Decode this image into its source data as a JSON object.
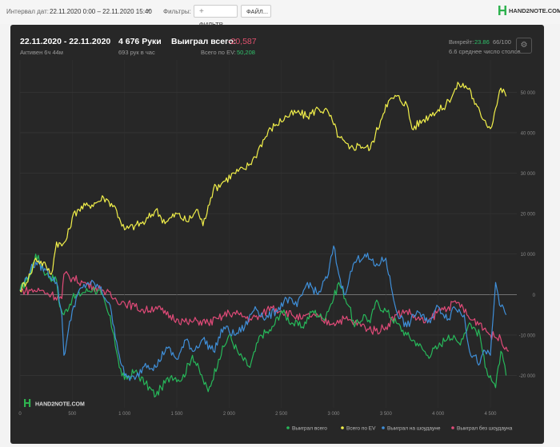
{
  "toolbar": {
    "interval_label": "Интервал дат:",
    "interval_value": "22.11.2020 0:00 – 22.11.2020 15:40",
    "filters_label": "Фильтры:",
    "filter_button": "ФИЛЬТР...",
    "file_button": "ФАЙЛ...",
    "logo": "HAND2NOTE.COM"
  },
  "summary": {
    "date_range": "22.11.2020 - 22.11.2020",
    "active": "Активен 6ч 44м",
    "hands": "4 676 Руки",
    "hands_per_hour": "693 рук в час",
    "won_total_label": "Выиграл всего:",
    "won_total_value": "-20,587",
    "ev_label": "Всего по EV:",
    "ev_value": "50,208",
    "winrate_label": "Винрейт:",
    "winrate_value": "23.86",
    "winrate_unit": "66/100",
    "avg_tables": "6.6 среднее число столов"
  },
  "colors": {
    "green": "#27b85a",
    "yellow": "#f2f04a",
    "blue": "#3f8fd9",
    "pink": "#e04a78",
    "negative": "#e0506e",
    "positive": "#2fc06a"
  },
  "chart_data": {
    "type": "line",
    "xlim": [
      0,
      4676
    ],
    "ylim": [
      -27000,
      55000
    ],
    "x_ticks": [
      "0",
      "500",
      "1 000",
      "1 500",
      "2 000",
      "2 500",
      "3 000",
      "3 500",
      "4 000",
      "4 500"
    ],
    "y_ticks": [
      "50 000",
      "40 000",
      "30 000",
      "20 000",
      "10 000",
      "0",
      "-10 000",
      "-20 000"
    ],
    "grid": true,
    "legend_position": "bottom-right",
    "watermark": "HAND2NOTE.COM",
    "series": [
      {
        "name": "Выиграл всего",
        "color": "#27b85a",
        "x": [
          0,
          100,
          150,
          250,
          350,
          380,
          420,
          500,
          600,
          700,
          780,
          850,
          900,
          950,
          1000,
          1100,
          1200,
          1300,
          1350,
          1450,
          1550,
          1650,
          1750,
          1800,
          1900,
          2000,
          2100,
          2200,
          2300,
          2400,
          2500,
          2600,
          2700,
          2800,
          2900,
          3000,
          3050,
          3150,
          3200,
          3300,
          3350,
          3400,
          3500,
          3600,
          3700,
          3800,
          3900,
          4000,
          4100,
          4200,
          4300,
          4400,
          4450,
          4500,
          4550,
          4600,
          4650
        ],
        "y": [
          1000,
          5000,
          10000,
          5000,
          3500,
          -3000,
          -5000,
          -1000,
          500,
          1500,
          0,
          -5000,
          -10000,
          -18000,
          -21000,
          -19000,
          -22000,
          -25000,
          -23000,
          -20000,
          -21000,
          -15000,
          -21000,
          -24000,
          -16000,
          -10000,
          -15000,
          -18000,
          -10000,
          -9000,
          -4000,
          -7000,
          -8000,
          -4000,
          -6000,
          -1000,
          3000,
          -3000,
          -8000,
          -5000,
          -7000,
          -2000,
          -4000,
          -7000,
          -10000,
          -12000,
          -15000,
          -13000,
          -10000,
          -12000,
          -7000,
          -10000,
          -18000,
          -20000,
          -23000,
          -14000,
          -20000
        ]
      },
      {
        "name": "Всего по EV",
        "color": "#f2f04a",
        "x": [
          0,
          100,
          150,
          250,
          300,
          350,
          400,
          450,
          500,
          550,
          650,
          750,
          800,
          850,
          900,
          950,
          1000,
          1100,
          1200,
          1300,
          1350,
          1400,
          1500,
          1600,
          1700,
          1750,
          1800,
          1850,
          1950,
          2050,
          2150,
          2250,
          2300,
          2400,
          2450,
          2550,
          2650,
          2750,
          2850,
          2950,
          3000,
          3050,
          3150,
          3250,
          3350,
          3450,
          3500,
          3600,
          3700,
          3750,
          3850,
          3950,
          4050,
          4100,
          4200,
          4300,
          4350,
          4450,
          4500,
          4550,
          4600,
          4650
        ],
        "y": [
          1000,
          5000,
          9000,
          7000,
          5000,
          13000,
          12000,
          14000,
          19000,
          21000,
          22000,
          23000,
          24000,
          23000,
          22000,
          19000,
          16000,
          17000,
          18000,
          21000,
          19000,
          18000,
          20000,
          18000,
          21000,
          17000,
          22000,
          26000,
          28000,
          30000,
          31000,
          34000,
          37000,
          41000,
          42000,
          44000,
          45000,
          44000,
          46000,
          45000,
          42000,
          39000,
          36000,
          37000,
          36000,
          43000,
          47000,
          49000,
          47000,
          41000,
          43000,
          45000,
          46000,
          48000,
          52000,
          51000,
          47000,
          43000,
          41000,
          46000,
          51000,
          49000
        ]
      },
      {
        "name": "Выиграл на шоудауне",
        "color": "#3f8fd9",
        "x": [
          0,
          100,
          150,
          250,
          350,
          400,
          420,
          450,
          500,
          550,
          650,
          750,
          850,
          900,
          950,
          1000,
          1100,
          1200,
          1300,
          1400,
          1500,
          1600,
          1650,
          1750,
          1850,
          1950,
          2050,
          2150,
          2250,
          2350,
          2450,
          2550,
          2650,
          2750,
          2850,
          2950,
          3000,
          3050,
          3100,
          3150,
          3200,
          3300,
          3400,
          3500,
          3550,
          3600,
          3700,
          3800,
          3900,
          4000,
          4100,
          4150,
          4250,
          4300,
          4400,
          4450,
          4500,
          4550,
          4600,
          4650
        ],
        "y": [
          1000,
          6000,
          8000,
          6000,
          3000,
          -5000,
          -15000,
          -11000,
          -4000,
          0,
          3000,
          2000,
          -2000,
          -8000,
          -15000,
          -20000,
          -21000,
          -17000,
          -18000,
          -13000,
          -16000,
          -11000,
          -14000,
          -11000,
          -14000,
          -8000,
          -10000,
          -8000,
          -3000,
          -6000,
          -4000,
          -1000,
          -3000,
          3000,
          0,
          5000,
          12000,
          5000,
          0,
          4000,
          8000,
          10000,
          7000,
          9000,
          2000,
          -4000,
          -8000,
          -4000,
          -7000,
          -3000,
          -6000,
          -3000,
          -5000,
          -14000,
          -17000,
          -14000,
          -15000,
          3000,
          -3000,
          -5000
        ]
      },
      {
        "name": "Выиграл без шоудауна",
        "color": "#e04a78",
        "x": [
          0,
          100,
          200,
          300,
          400,
          420,
          500,
          600,
          700,
          800,
          900,
          1000,
          1100,
          1200,
          1300,
          1400,
          1500,
          1600,
          1700,
          1800,
          1900,
          2000,
          2100,
          2200,
          2300,
          2400,
          2500,
          2600,
          2700,
          2800,
          2900,
          3000,
          3100,
          3200,
          3300,
          3400,
          3500,
          3600,
          3700,
          3800,
          3900,
          4000,
          4100,
          4200,
          4300,
          4400,
          4500,
          4600,
          4676
        ],
        "y": [
          1000,
          1000,
          1000,
          0,
          -1000,
          5000,
          4000,
          3000,
          2000,
          1000,
          -1000,
          -2000,
          -3000,
          -4000,
          -3000,
          -5000,
          -6000,
          -7000,
          -6500,
          -7000,
          -6000,
          -4500,
          -5000,
          -6000,
          -5500,
          -3000,
          -4000,
          -5000,
          -6000,
          -5000,
          -6500,
          -7000,
          -6000,
          -7000,
          -8000,
          -9000,
          -8000,
          -5000,
          -4000,
          -6000,
          -7000,
          -4000,
          -3000,
          -2000,
          -6000,
          -7000,
          -10000,
          -11000,
          -14000
        ]
      }
    ]
  }
}
